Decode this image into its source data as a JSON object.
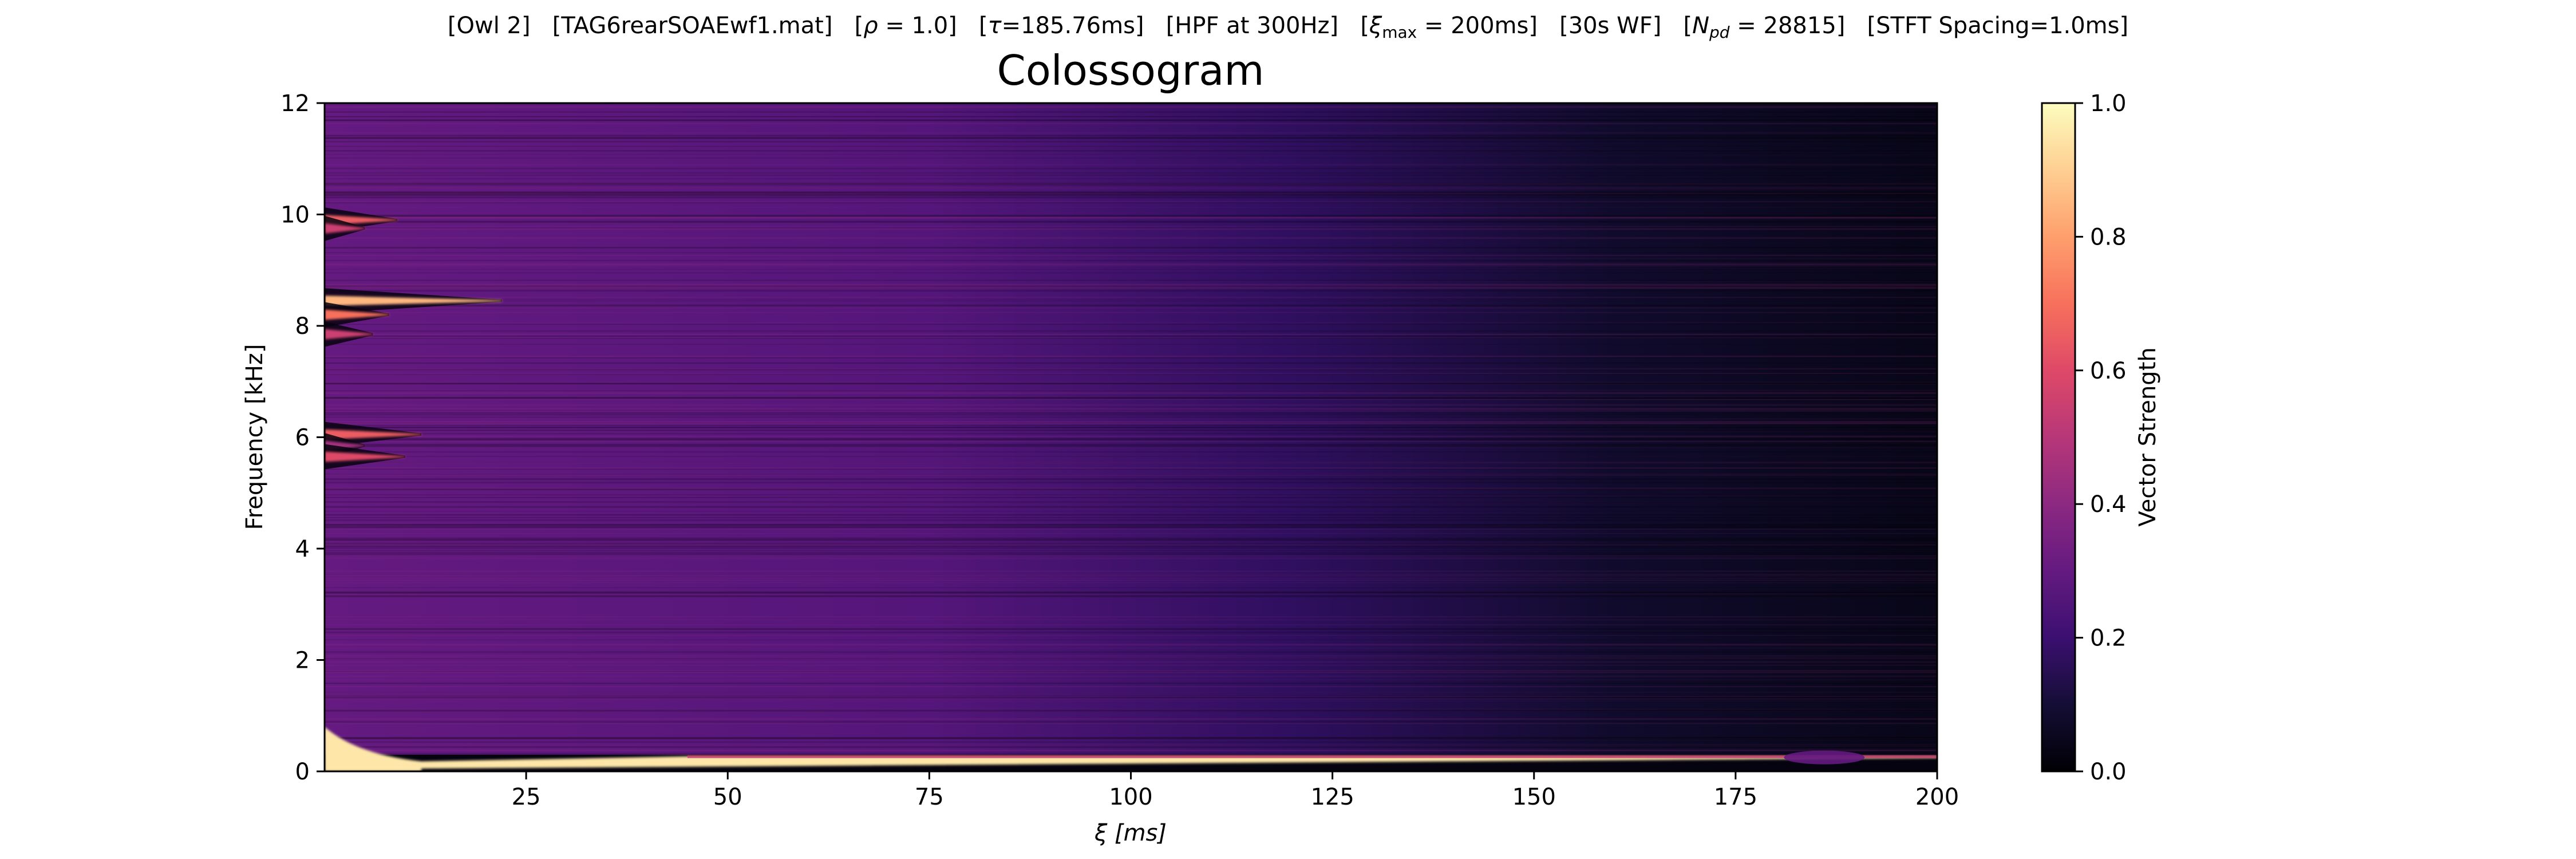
{
  "header": {
    "parts": [
      {
        "text": "[Owl 2]"
      },
      {
        "text": "[TAG6rearSOAEwf1.mat]"
      },
      {
        "text": "[",
        "mathvar": "ρ",
        "tail": " = 1.0]"
      },
      {
        "text": "[",
        "mathvar": "τ",
        "tail": "=185.76ms]"
      },
      {
        "text": "[HPF at 300Hz]"
      },
      {
        "text": "[",
        "mathvar": "ξ",
        "sub": "max",
        "tail": " = 200ms]"
      },
      {
        "text": "[30s WF]"
      },
      {
        "text": "[",
        "mathvar": "N",
        "sub": "pd",
        "tail": " = 28815]"
      },
      {
        "text": "[STFT Spacing=1.0ms]"
      }
    ]
  },
  "chart_data": {
    "type": "heatmap",
    "title": "Colossogram",
    "xlabel": "ξ [ms]",
    "ylabel": "Frequency [kHz]",
    "xlim": [
      0,
      200
    ],
    "ylim": [
      0,
      12
    ],
    "xticks": [
      25,
      50,
      75,
      100,
      125,
      150,
      175,
      200
    ],
    "yticks": [
      0,
      2,
      4,
      6,
      8,
      10,
      12
    ],
    "colormap": "magma",
    "colorbar": {
      "label": "Vector Strength",
      "range": [
        0.0,
        1.0
      ],
      "ticks": [
        "0.0",
        "0.2",
        "0.4",
        "0.6",
        "0.8",
        "1.0"
      ]
    },
    "background_decay": [
      {
        "xi_ms": 0,
        "vector_strength": 0.3
      },
      {
        "xi_ms": 75,
        "vector_strength": 0.26
      },
      {
        "xi_ms": 120,
        "vector_strength": 0.17
      },
      {
        "xi_ms": 160,
        "vector_strength": 0.08
      },
      {
        "xi_ms": 200,
        "vector_strength": 0.04
      }
    ],
    "features": [
      {
        "freq_khz": 8.45,
        "peak_strength": 0.85,
        "extent_ms": 22
      },
      {
        "freq_khz": 8.2,
        "peak_strength": 0.7,
        "extent_ms": 8
      },
      {
        "freq_khz": 7.85,
        "peak_strength": 0.55,
        "extent_ms": 6
      },
      {
        "freq_khz": 9.9,
        "peak_strength": 0.65,
        "extent_ms": 9
      },
      {
        "freq_khz": 9.75,
        "peak_strength": 0.55,
        "extent_ms": 5
      },
      {
        "freq_khz": 6.05,
        "peak_strength": 0.65,
        "extent_ms": 12
      },
      {
        "freq_khz": 5.85,
        "peak_strength": 0.45,
        "extent_ms": 5
      },
      {
        "freq_khz": 5.65,
        "peak_strength": 0.6,
        "extent_ms": 10
      },
      {
        "freq_khz": 0.25,
        "peak_strength": 0.95,
        "extent_ms": 200
      },
      {
        "freq_khz": 0.25,
        "peak_strength": 0.3,
        "extent_ms": 10,
        "center_ms": 186
      }
    ]
  }
}
